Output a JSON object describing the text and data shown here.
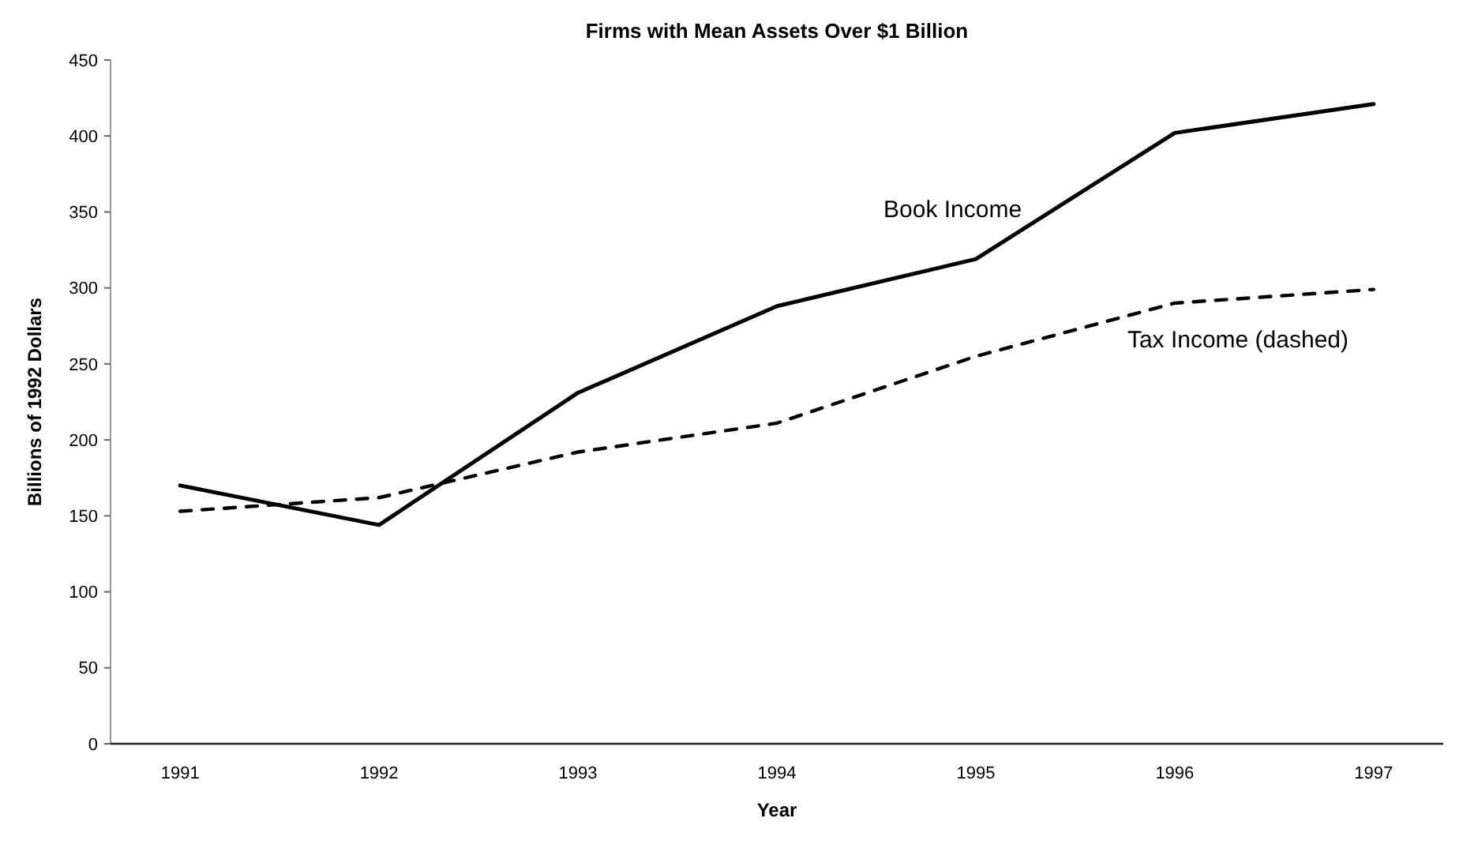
{
  "chart_data": {
    "type": "line",
    "title": "Firms with Mean Assets Over $1 Billion",
    "xlabel": "Year",
    "ylabel": "Billions of 1992 Dollars",
    "categories": [
      "1991",
      "1992",
      "1993",
      "1994",
      "1995",
      "1996",
      "1997"
    ],
    "series": [
      {
        "name": "Book Income",
        "color": "#000000",
        "line_style": "solid",
        "values": [
          170,
          144,
          231,
          288,
          319,
          402,
          421
        ]
      },
      {
        "name": "Tax Income (dashed)",
        "color": "#000000",
        "line_style": "dashed",
        "values": [
          153,
          162,
          192,
          211,
          255,
          290,
          299
        ]
      }
    ],
    "ylim": [
      0,
      450
    ],
    "yticks": [
      0,
      50,
      100,
      150,
      200,
      250,
      300,
      350,
      400,
      450
    ],
    "grid": false,
    "marker": "none"
  }
}
